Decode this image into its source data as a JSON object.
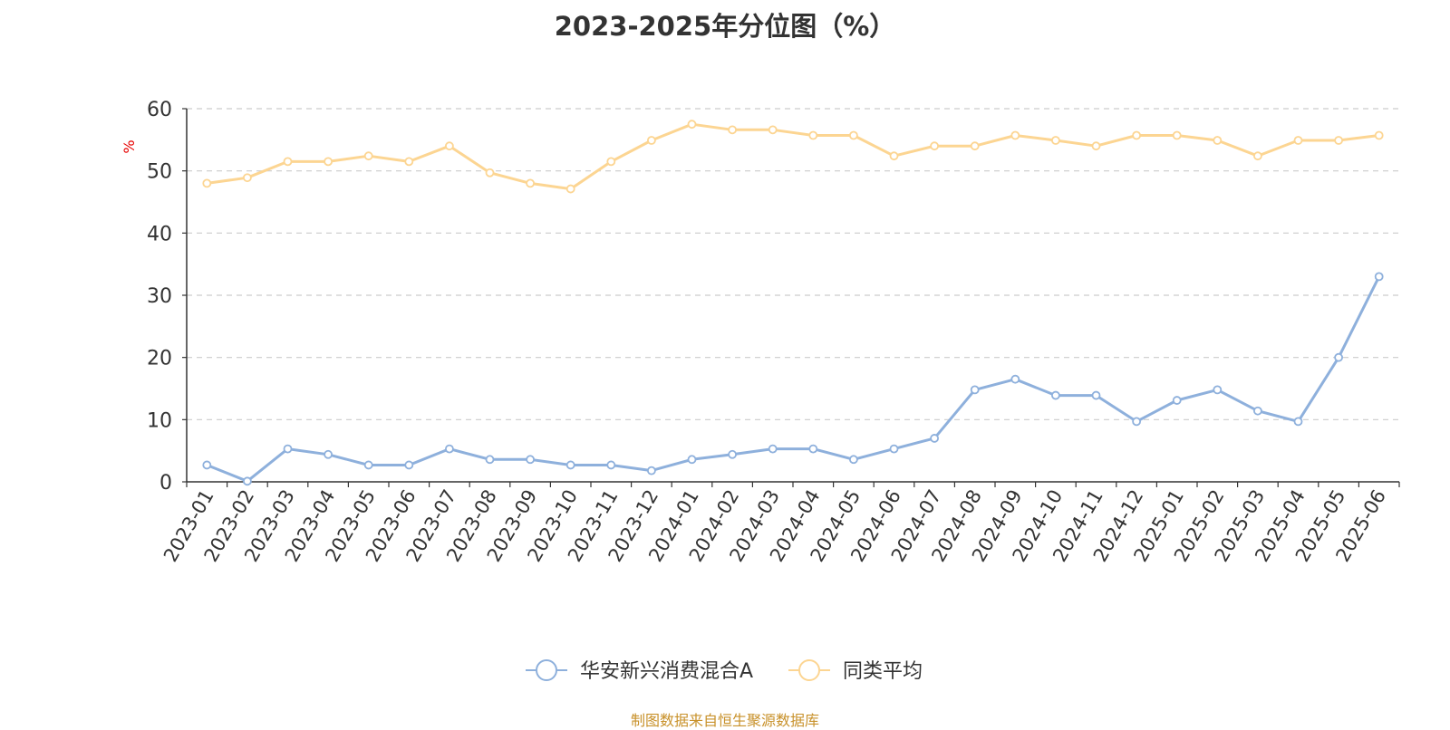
{
  "title": "2023-2025年分位图（%）",
  "source_note": "制图数据来自恒生聚源数据库",
  "colors": {
    "series_fund": "#8eb0dc",
    "series_avg": "#fcd592",
    "ylabel": "#e60000",
    "axis": "#333333",
    "grid": "#cccccc",
    "text": "#333333",
    "source": "#c8912a"
  },
  "chart_data": {
    "type": "line",
    "ylabel": "%",
    "ylim": [
      0,
      60
    ],
    "yticks": [
      0,
      10,
      20,
      30,
      40,
      50,
      60
    ],
    "grid": true,
    "legend_position": "bottom-center",
    "categories": [
      "2023-01",
      "2023-02",
      "2023-03",
      "2023-04",
      "2023-05",
      "2023-06",
      "2023-07",
      "2023-08",
      "2023-09",
      "2023-10",
      "2023-11",
      "2023-12",
      "2024-01",
      "2024-02",
      "2024-03",
      "2024-04",
      "2024-05",
      "2024-06",
      "2024-07",
      "2024-08",
      "2024-09",
      "2024-10",
      "2024-11",
      "2024-12",
      "2025-01",
      "2025-02",
      "2025-03",
      "2025-04",
      "2025-05",
      "2025-06"
    ],
    "series": [
      {
        "name": "华安新兴消费混合A",
        "values": [
          2.7,
          0.1,
          5.3,
          4.4,
          2.7,
          2.7,
          5.3,
          3.6,
          3.6,
          2.7,
          2.7,
          1.8,
          3.6,
          4.4,
          5.3,
          5.3,
          3.6,
          5.3,
          7.0,
          14.8,
          16.5,
          13.9,
          13.9,
          9.7,
          13.1,
          14.8,
          11.4,
          9.7,
          20.0,
          33.0
        ]
      },
      {
        "name": "同类平均",
        "values": [
          48.0,
          48.9,
          51.5,
          51.5,
          52.4,
          51.5,
          54.0,
          49.7,
          48.0,
          47.1,
          51.5,
          54.9,
          57.5,
          56.6,
          56.6,
          55.7,
          55.7,
          52.4,
          54.0,
          54.0,
          55.7,
          54.9,
          54.0,
          55.7,
          55.7,
          54.9,
          52.4,
          54.9,
          54.9,
          55.7
        ]
      }
    ]
  }
}
